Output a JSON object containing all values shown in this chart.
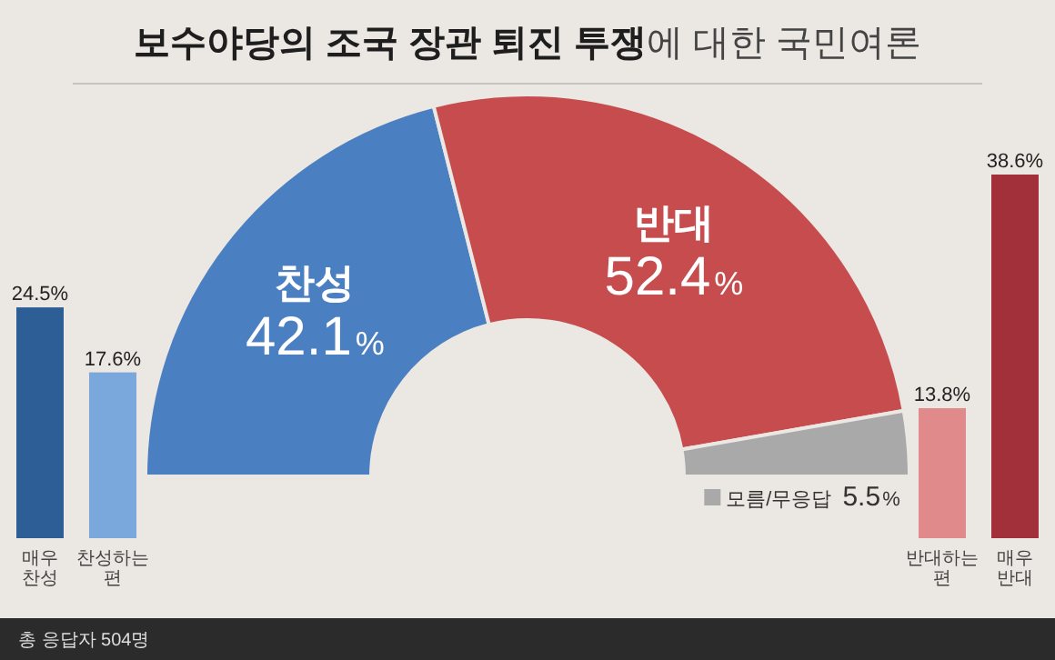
{
  "chart_data": [
    {
      "type": "bar",
      "categories": [
        "매우 찬성",
        "찬성하는 편"
      ],
      "values": [
        24.5,
        17.6
      ],
      "colors": [
        "#2d5e96",
        "#7ba8dc"
      ],
      "value_labels": [
        "24.5%",
        "17.6%"
      ]
    },
    {
      "type": "donut",
      "title": "**보수야당의 조국 장관 퇴진 투쟁**에 대한 국민여론",
      "categories": [
        "찬성",
        "반대",
        "모름/무응답"
      ],
      "values": [
        42.1,
        52.4,
        5.5
      ],
      "colors": [
        "#4a7fc1",
        "#c64c4e",
        "#a9a9a9"
      ],
      "value_labels": [
        "42.1%",
        "52.4%",
        "5.5%"
      ],
      "annotations": [
        "총 응답자 504명"
      ]
    },
    {
      "type": "bar",
      "categories": [
        "반대하는 편",
        "매우 반대"
      ],
      "values": [
        13.8,
        38.6
      ],
      "colors": [
        "#e08a8c",
        "#a2303a"
      ],
      "value_labels": [
        "13.8%",
        "38.6%"
      ]
    }
  ]
}
